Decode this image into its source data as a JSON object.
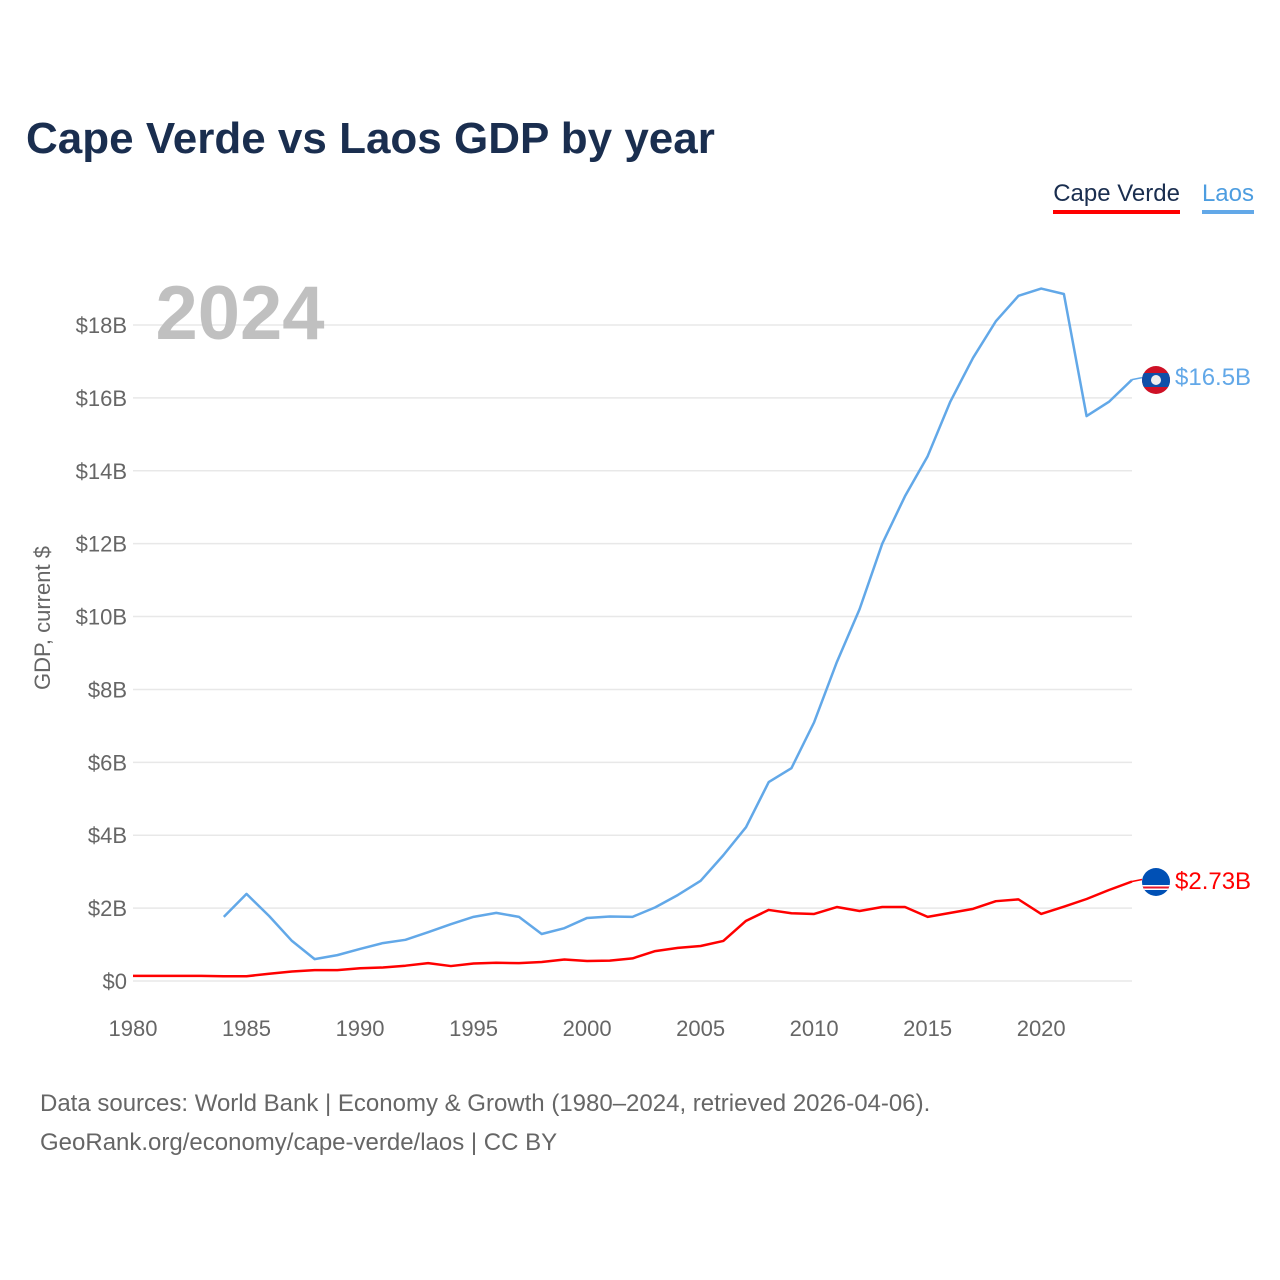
{
  "title": "Cape Verde vs Laos GDP by year",
  "legend": [
    "Cape Verde",
    "Laos"
  ],
  "year_label": "2024",
  "end_labels": {
    "laos": "$16.5B",
    "cape_verde": "$2.73B"
  },
  "source_line1": "Data sources: World Bank | Economy & Growth (1980–2024, retrieved 2026-04-06).",
  "source_line2": "GeoRank.org/economy/cape-verde/laos | CC BY",
  "colors": {
    "cape_verde": "#ff0000",
    "laos": "#62a8e8",
    "title": "#1a2e4f"
  },
  "chart_data": {
    "type": "line",
    "title": "Cape Verde vs Laos GDP by year",
    "xlabel": "",
    "ylabel": "GDP, current $",
    "xlim": [
      1980,
      2024
    ],
    "ylim": [
      0,
      18
    ],
    "x_ticks": [
      1980,
      1985,
      1990,
      1995,
      2000,
      2005,
      2010,
      2015,
      2020
    ],
    "x_tick_labels": [
      "1980",
      "1985",
      "1990",
      "1995",
      "2000",
      "2005",
      "2010",
      "2015",
      "2020"
    ],
    "y_ticks": [
      0,
      2,
      4,
      6,
      8,
      10,
      12,
      14,
      16,
      18
    ],
    "y_tick_labels": [
      "$0",
      "$2B",
      "$4B",
      "$6B",
      "$8B",
      "$10B",
      "$12B",
      "$14B",
      "$16B",
      "$18B"
    ],
    "grid": true,
    "legend_position": "top-right",
    "series": [
      {
        "name": "Cape Verde",
        "color": "#ff0000",
        "start_year": 1980,
        "values": [
          0.14,
          0.14,
          0.14,
          0.14,
          0.13,
          0.13,
          0.2,
          0.26,
          0.3,
          0.3,
          0.35,
          0.37,
          0.42,
          0.49,
          0.41,
          0.48,
          0.5,
          0.49,
          0.52,
          0.59,
          0.55,
          0.56,
          0.62,
          0.82,
          0.91,
          0.96,
          1.1,
          1.65,
          1.95,
          1.86,
          1.84,
          2.03,
          1.92,
          2.03,
          2.03,
          1.76,
          1.87,
          1.98,
          2.19,
          2.24,
          1.84,
          2.04,
          2.25,
          2.5,
          2.73
        ]
      },
      {
        "name": "Laos",
        "color": "#62a8e8",
        "start_year": 1984,
        "values": [
          1.76,
          2.39,
          1.78,
          1.1,
          0.6,
          0.71,
          0.88,
          1.04,
          1.13,
          1.34,
          1.56,
          1.76,
          1.87,
          1.76,
          1.29,
          1.45,
          1.73,
          1.77,
          1.76,
          2.02,
          2.36,
          2.75,
          3.45,
          4.22,
          5.46,
          5.84,
          7.1,
          8.75,
          10.2,
          12.0,
          13.3,
          14.4,
          15.9,
          17.1,
          18.1,
          18.8,
          19.0,
          18.85,
          15.5,
          15.9,
          16.5
        ]
      }
    ]
  }
}
